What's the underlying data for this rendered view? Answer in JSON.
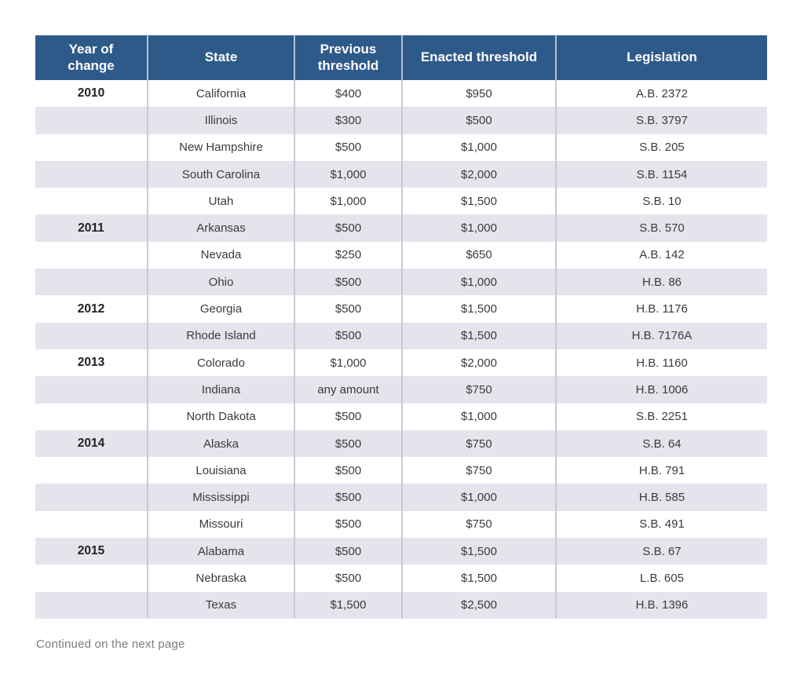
{
  "table": {
    "columns": [
      {
        "label": "Year of\nchange"
      },
      {
        "label": "State"
      },
      {
        "label": "Previous\nthreshold"
      },
      {
        "label": "Enacted threshold"
      },
      {
        "label": "Legislation"
      }
    ],
    "rows": [
      {
        "year": "2010",
        "state": "California",
        "previous": "$400",
        "enacted": "$950",
        "legislation": "A.B. 2372"
      },
      {
        "year": "",
        "state": "Illinois",
        "previous": "$300",
        "enacted": "$500",
        "legislation": "S.B. 3797"
      },
      {
        "year": "",
        "state": "New Hampshire",
        "previous": "$500",
        "enacted": "$1,000",
        "legislation": "S.B. 205"
      },
      {
        "year": "",
        "state": "South Carolina",
        "previous": "$1,000",
        "enacted": "$2,000",
        "legislation": "S.B. 1154"
      },
      {
        "year": "",
        "state": "Utah",
        "previous": "$1,000",
        "enacted": "$1,500",
        "legislation": "S.B. 10"
      },
      {
        "year": "2011",
        "state": "Arkansas",
        "previous": "$500",
        "enacted": "$1,000",
        "legislation": "S.B. 570"
      },
      {
        "year": "",
        "state": "Nevada",
        "previous": "$250",
        "enacted": "$650",
        "legislation": "A.B. 142"
      },
      {
        "year": "",
        "state": "Ohio",
        "previous": "$500",
        "enacted": "$1,000",
        "legislation": "H.B. 86"
      },
      {
        "year": "2012",
        "state": "Georgia",
        "previous": "$500",
        "enacted": "$1,500",
        "legislation": "H.B. 1176"
      },
      {
        "year": "",
        "state": "Rhode Island",
        "previous": "$500",
        "enacted": "$1,500",
        "legislation": "H.B. 7176A"
      },
      {
        "year": "2013",
        "state": "Colorado",
        "previous": "$1,000",
        "enacted": "$2,000",
        "legislation": "H.B. 1160"
      },
      {
        "year": "",
        "state": "Indiana",
        "previous": "any amount",
        "enacted": "$750",
        "legislation": "H.B. 1006"
      },
      {
        "year": "",
        "state": "North Dakota",
        "previous": "$500",
        "enacted": "$1,000",
        "legislation": "S.B. 2251"
      },
      {
        "year": "2014",
        "state": "Alaska",
        "previous": "$500",
        "enacted": "$750",
        "legislation": "S.B. 64"
      },
      {
        "year": "",
        "state": "Louisiana",
        "previous": "$500",
        "enacted": "$750",
        "legislation": "H.B. 791"
      },
      {
        "year": "",
        "state": "Mississippi",
        "previous": "$500",
        "enacted": "$1,000",
        "legislation": "H.B. 585"
      },
      {
        "year": "",
        "state": "Missouri",
        "previous": "$500",
        "enacted": "$750",
        "legislation": "S.B. 491"
      },
      {
        "year": "2015",
        "state": "Alabama",
        "previous": "$500",
        "enacted": "$1,500",
        "legislation": "S.B. 67"
      },
      {
        "year": "",
        "state": "Nebraska",
        "previous": "$500",
        "enacted": "$1,500",
        "legislation": "L.B. 605"
      },
      {
        "year": "",
        "state": "Texas",
        "previous": "$1,500",
        "enacted": "$2,500",
        "legislation": "H.B. 1396"
      }
    ]
  },
  "footer": {
    "note": "Continued on the next page"
  },
  "colors": {
    "header_bg": "#2e5a8a",
    "stripe": "#e4e4ec",
    "divider": "#c7cad7",
    "header_divider": "#b0c0d6",
    "body_text": "#3b3b3b",
    "footer_text": "#7d7d7d"
  }
}
